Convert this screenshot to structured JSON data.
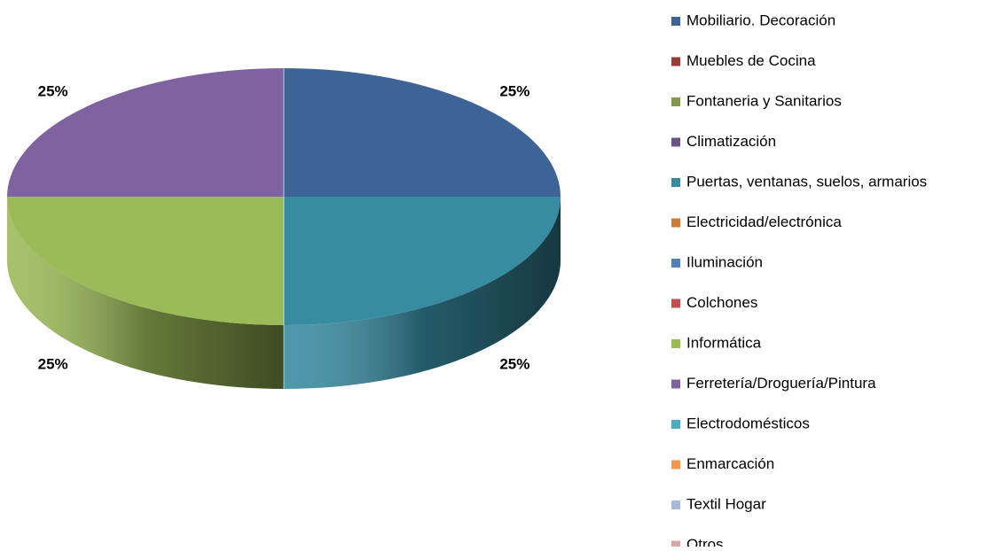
{
  "chart_data": {
    "type": "pie3d",
    "categories": [
      "Mobiliario. Decoración",
      "Muebles de Cocina",
      "Fontaneria y Sanitarios",
      "Climatización",
      "Puertas, ventanas, suelos, armarios",
      "Electricidad/electrónica",
      "Iluminación",
      "Colchones",
      "Informática",
      "Ferretería/Droguería/Pintura",
      "Electrodomésticos",
      "Enmarcación",
      "Textil Hogar",
      "Otros"
    ],
    "values": [
      25,
      0,
      0,
      0,
      25,
      0,
      0,
      0,
      25,
      25,
      0,
      0,
      0,
      0
    ],
    "value_labels": [
      "25%",
      null,
      null,
      null,
      "25%",
      null,
      null,
      null,
      "25%",
      "25%",
      null,
      null,
      null,
      null
    ],
    "colors": [
      "#3e6497",
      "#9e3b39",
      "#7f9a48",
      "#69548a",
      "#388ca2",
      "#cc7b38",
      "#4f81bd",
      "#c0504d",
      "#9bbb59",
      "#7f63a1",
      "#4bacc6",
      "#f79646",
      "#a7b9da",
      "#dba5a4"
    ],
    "legend": "right"
  }
}
